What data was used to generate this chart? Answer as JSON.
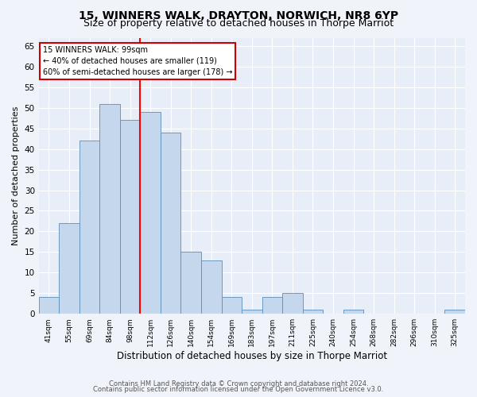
{
  "title1": "15, WINNERS WALK, DRAYTON, NORWICH, NR8 6YP",
  "title2": "Size of property relative to detached houses in Thorpe Marriot",
  "xlabel": "Distribution of detached houses by size in Thorpe Marriot",
  "ylabel": "Number of detached properties",
  "categories": [
    "41sqm",
    "55sqm",
    "69sqm",
    "84sqm",
    "98sqm",
    "112sqm",
    "126sqm",
    "140sqm",
    "154sqm",
    "169sqm",
    "183sqm",
    "197sqm",
    "211sqm",
    "225sqm",
    "240sqm",
    "254sqm",
    "268sqm",
    "282sqm",
    "296sqm",
    "310sqm",
    "325sqm"
  ],
  "values": [
    4,
    22,
    42,
    51,
    47,
    49,
    44,
    15,
    13,
    4,
    1,
    4,
    5,
    1,
    0,
    1,
    0,
    0,
    0,
    0,
    1
  ],
  "bar_color": "#c5d7ed",
  "bar_edge_color": "#5b8db8",
  "ylim": [
    0,
    67
  ],
  "yticks": [
    0,
    5,
    10,
    15,
    20,
    25,
    30,
    35,
    40,
    45,
    50,
    55,
    60,
    65
  ],
  "red_line_x": 4.5,
  "annotation_line1": "15 WINNERS WALK: 99sqm",
  "annotation_line2": "← 40% of detached houses are smaller (119)",
  "annotation_line3": "60% of semi-detached houses are larger (178) →",
  "annotation_box_color": "#ffffff",
  "annotation_box_edge": "#cc0000",
  "footer1": "Contains HM Land Registry data © Crown copyright and database right 2024.",
  "footer2": "Contains public sector information licensed under the Open Government Licence v3.0.",
  "fig_bg_color": "#f0f4fa",
  "plot_bg_color": "#e8eef8",
  "title1_fontsize": 10,
  "title2_fontsize": 9,
  "xlabel_fontsize": 8.5,
  "ylabel_fontsize": 8
}
